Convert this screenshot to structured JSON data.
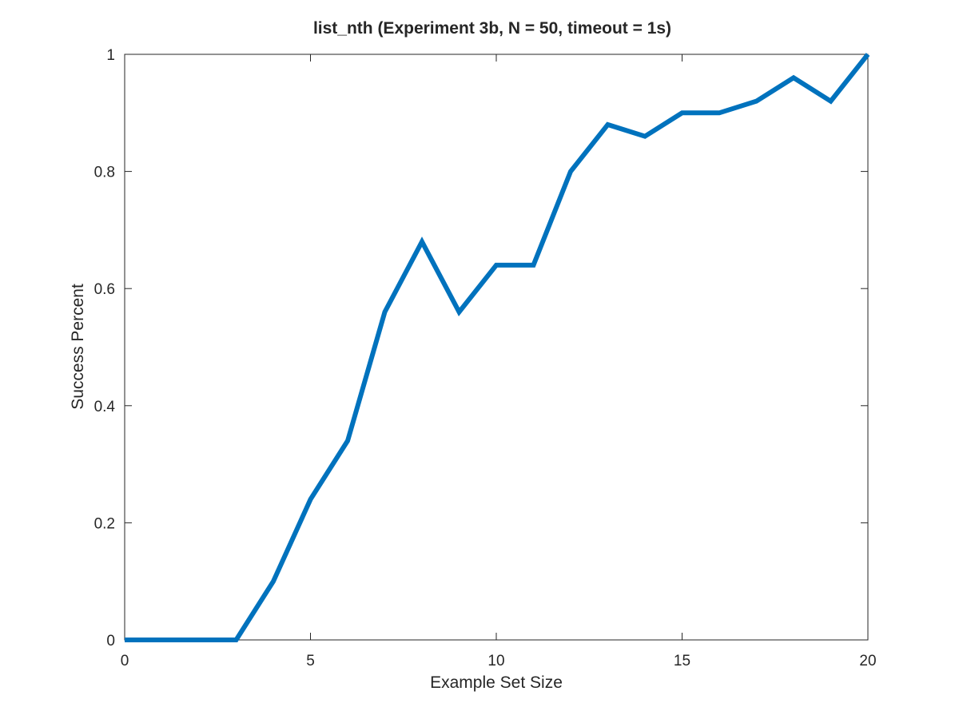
{
  "chart_data": {
    "type": "line",
    "title": "list_nth (Experiment 3b, N = 50, timeout = 1s)",
    "xlabel": "Example Set Size",
    "ylabel": "Success Percent",
    "xlim": [
      0,
      20
    ],
    "ylim": [
      0,
      1
    ],
    "xticks": [
      0,
      5,
      10,
      15,
      20
    ],
    "xtick_labels": [
      "0",
      "5",
      "10",
      "15",
      "20"
    ],
    "yticks": [
      0,
      0.2,
      0.4,
      0.6,
      0.8,
      1
    ],
    "ytick_labels": [
      "0",
      "0.2",
      "0.4",
      "0.6",
      "0.8",
      "1"
    ],
    "grid": false,
    "series": [
      {
        "color": "#0072BD",
        "x": [
          0,
          1,
          2,
          3,
          4,
          5,
          6,
          7,
          8,
          9,
          10,
          11,
          12,
          13,
          14,
          15,
          16,
          17,
          18,
          19,
          20
        ],
        "y": [
          0,
          0,
          0,
          0,
          0.1,
          0.24,
          0.34,
          0.56,
          0.68,
          0.56,
          0.64,
          0.64,
          0.8,
          0.88,
          0.86,
          0.9,
          0.9,
          0.92,
          0.96,
          0.92,
          1.0
        ]
      }
    ]
  }
}
